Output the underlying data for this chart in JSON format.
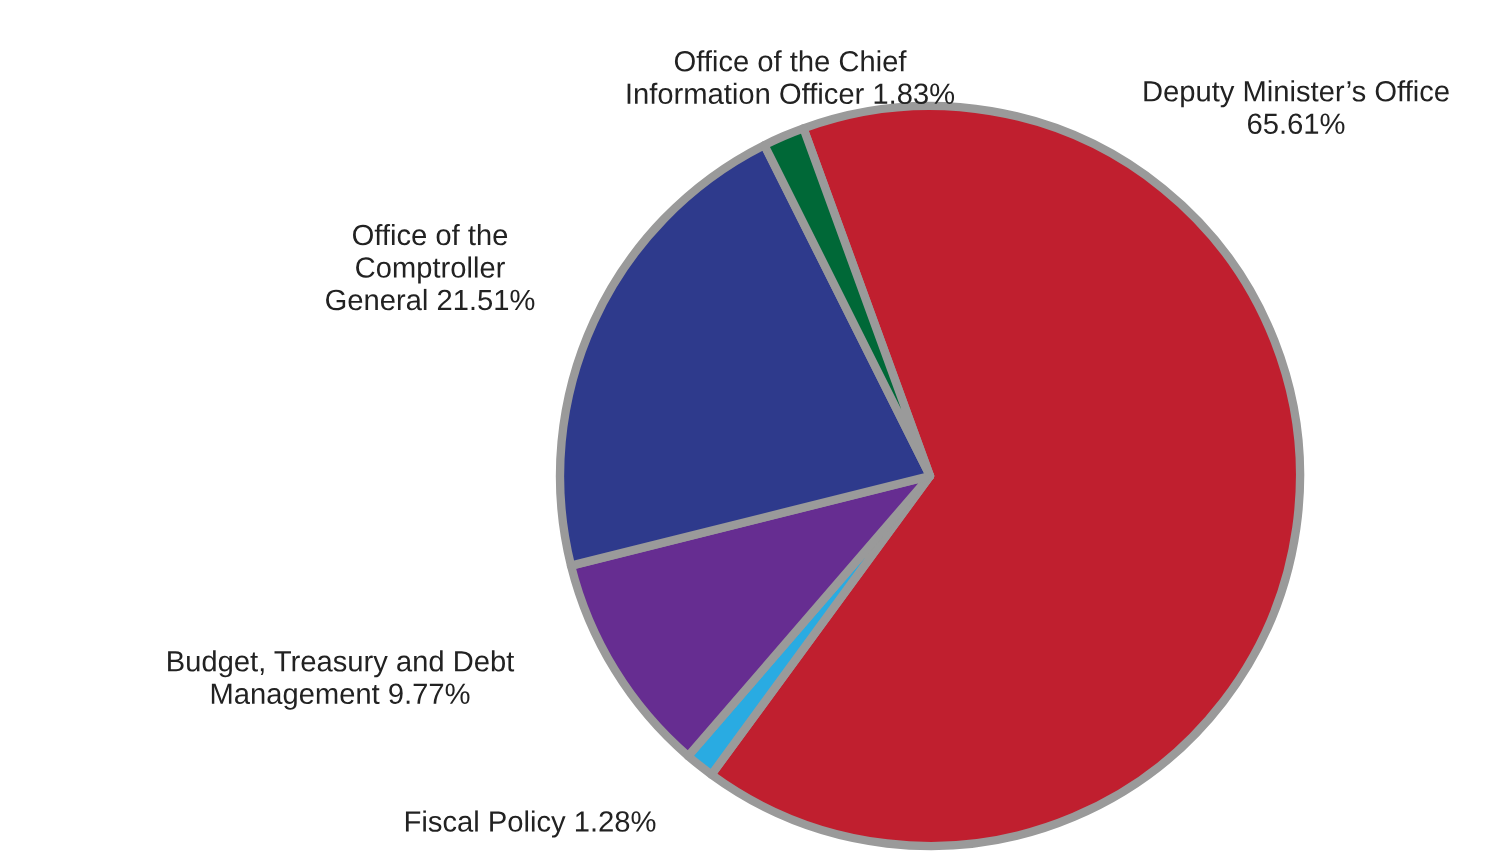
{
  "chart_data": {
    "type": "pie",
    "categories": [
      "Deputy Minister’s Office",
      "Fiscal Policy",
      "Budget, Treasury and Debt\nManagement",
      "Office of the\nComptroller\nGeneral",
      "Office of the Chief\nInformation Officer"
    ],
    "values": [
      65.61,
      1.28,
      9.77,
      21.51,
      1.83
    ],
    "value_labels": [
      "65.61%",
      "1.28%",
      "9.77%",
      "21.51%",
      "1.83%"
    ],
    "colors": [
      "#c01f2f",
      "#29abe2",
      "#662d91",
      "#2e3a8c",
      "#006837"
    ]
  }
}
